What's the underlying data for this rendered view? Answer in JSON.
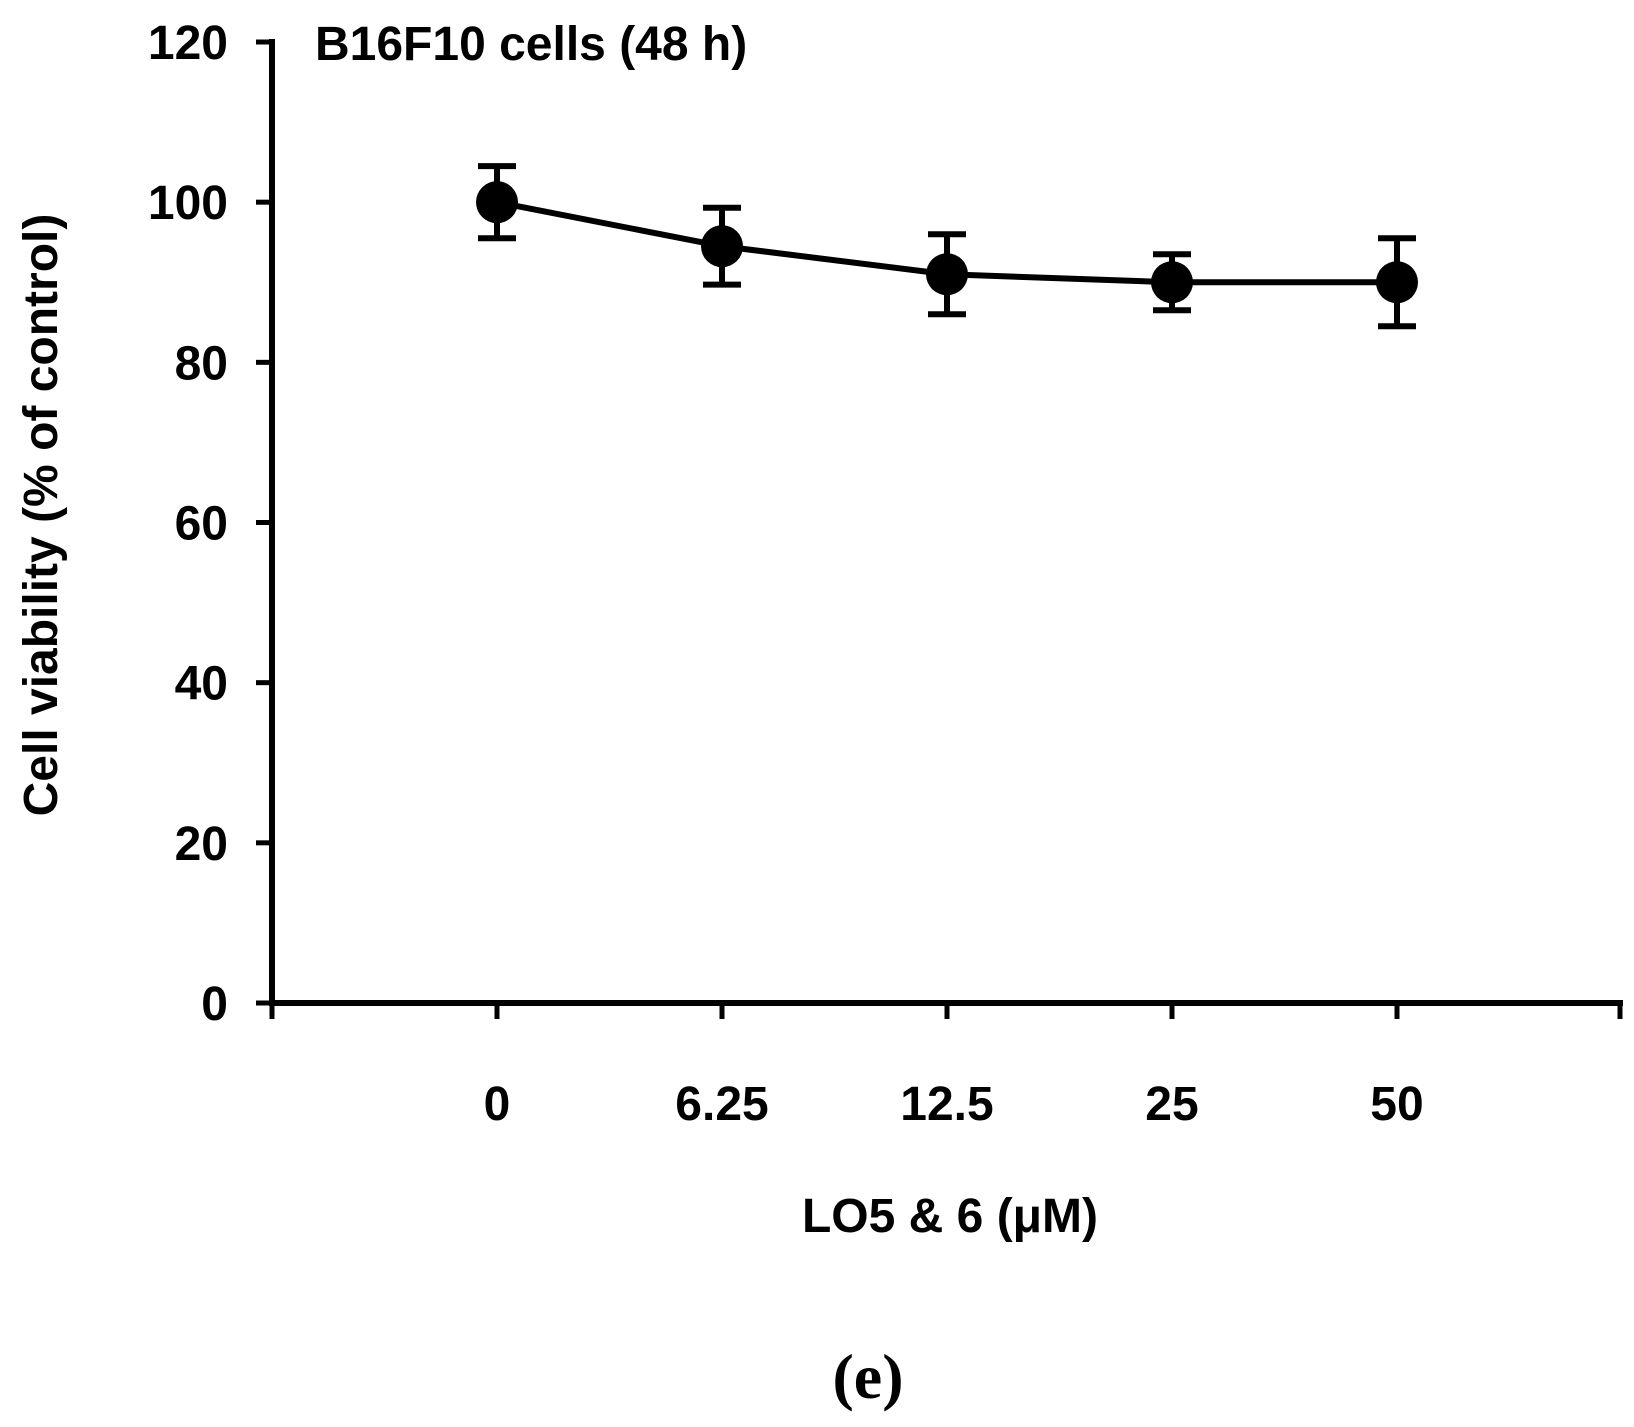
{
  "chart_data": {
    "type": "line",
    "title": "B16F10 cells (48 h)",
    "xlabel": "LO5 & 6 (μM)",
    "ylabel": "Cell viability (% of control)",
    "panel_label": "(e)",
    "categories": [
      "0",
      "6.25",
      "12.5",
      "25",
      "50"
    ],
    "series": [
      {
        "name": "LO5 & 6",
        "values": [
          100,
          94.5,
          91,
          90,
          90
        ],
        "error": [
          4.5,
          4.8,
          5,
          3.5,
          5.5
        ]
      }
    ],
    "ylim": [
      0,
      120
    ],
    "yticks": [
      0,
      20,
      40,
      60,
      80,
      100,
      120
    ],
    "grid": false,
    "color": "#000000"
  }
}
